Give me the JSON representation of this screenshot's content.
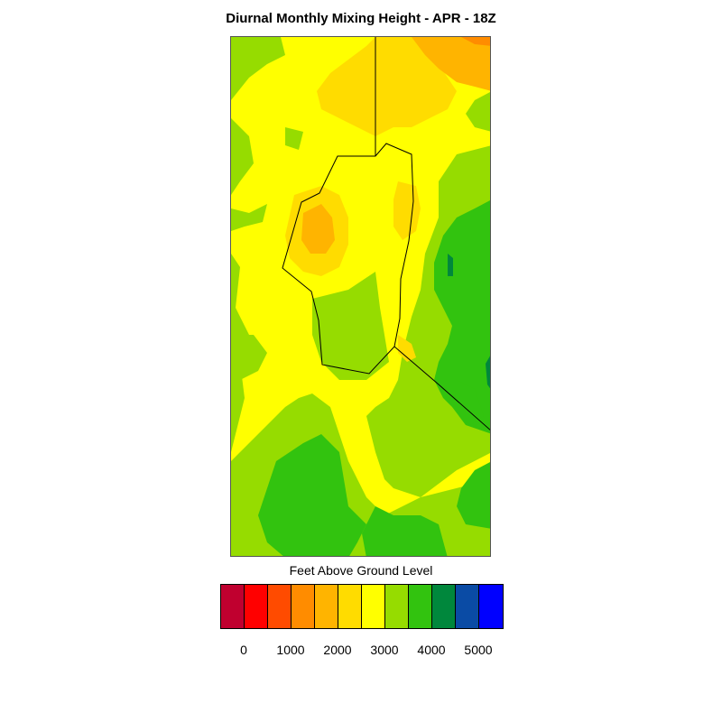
{
  "title": "Diurnal Monthly Mixing Height - APR - 18Z",
  "legend": {
    "title": "Feet Above Ground Level",
    "colors": [
      "#c0002f",
      "#ff0000",
      "#ff4b00",
      "#ff8c00",
      "#ffb400",
      "#ffdc00",
      "#ffff00",
      "#96dc00",
      "#32c30f",
      "#00873c",
      "#0a4ba5",
      "#0000ff"
    ],
    "ticks": [
      "0",
      "1000",
      "2000",
      "3000",
      "4000",
      "5000"
    ]
  },
  "map": {
    "fill_colors": {
      "background": "#ffff00",
      "yellow_green": "#96dc00",
      "green": "#32c30f",
      "dark_green": "#00873c",
      "gold": "#ffdc00",
      "orange_yellow": "#ffb400",
      "orange": "#ff8c00"
    },
    "boundary_color": "#000000"
  }
}
